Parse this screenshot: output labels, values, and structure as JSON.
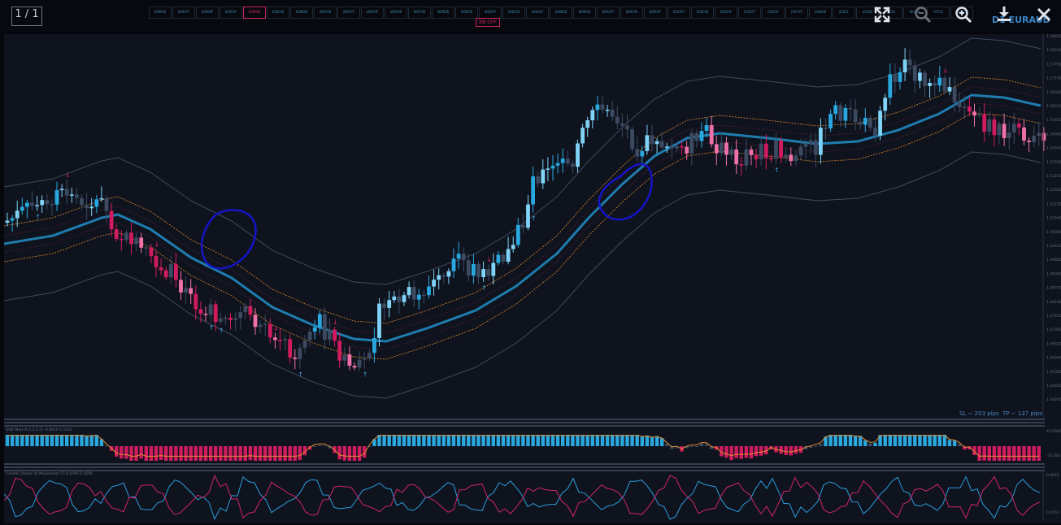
{
  "viewer": {
    "counter": "1 / 1",
    "toolbar": {
      "fullscreen_icon": "fullscreen-icon",
      "zoom_out_icon": "zoom-out-icon",
      "zoom_in_icon": "zoom-in-icon",
      "download_icon": "download-icon",
      "close_icon": "close-icon"
    }
  },
  "terminal": {
    "symbol_tabs": [
      "EURUSD",
      "EURJPY",
      "EURGBP",
      "EURCHF",
      "EURAUD",
      "EURCAD",
      "EURNZD",
      "GBPUSD",
      "GBPJPY",
      "GBPCHF",
      "GBPAUD",
      "GBPCAD",
      "GBPNZD",
      "AUDUSD",
      "AUDJPY",
      "AUDCAD",
      "AUDCHF",
      "AUDNZD",
      "NZDUSD",
      "NZDJPY",
      "NZDCAD",
      "NZDCHF",
      "USDJPY",
      "USDCAD",
      "USDCHF",
      "CADJPY",
      "CADCHF",
      "CHFJPY",
      "XAUUSD",
      "USOIL",
      "US500",
      "DE30",
      "UK100",
      "JP225",
      "GBPUSD"
    ],
    "active_tab_index": 4,
    "bb_toggle": "BB OFF",
    "pair_label": "D1  EURAUD",
    "trade_info": {
      "sl": "SL − 203 pips",
      "tp": "TP − 137 pips"
    },
    "price_ticks": [
      "1.58820",
      "1.58260",
      "1.57700",
      "1.57140",
      "1.56580",
      "1.56020",
      "1.55460",
      "1.54900",
      "1.54340",
      "1.53780",
      "1.53220",
      "1.52660",
      "1.52100",
      "1.51540",
      "1.50980",
      "1.50420",
      "1.49860",
      "1.49300",
      "1.48740",
      "1.48180",
      "1.47620",
      "1.47060",
      "1.46500",
      "1.45940",
      "1.45380",
      "1.44820",
      "1.44260"
    ],
    "panel1_label": "QQE Mod (6,5,3,3.5)  -0.8010  0.5533",
    "panel1_ticks": [
      "45.0000",
      "-35.000"
    ],
    "panel2_label": "Candle Chaser Vs Movement (7)  0.4395  0.4595",
    "panel2_ticks": [
      "0.9645",
      "0.0355"
    ]
  },
  "colors": {
    "bg": "#05070c",
    "panel": "#0f131e",
    "bull_strong": "#29a8e0",
    "bull_light": "#7fd3f7",
    "bear_strong": "#d01c5e",
    "bear_light": "#f071a9",
    "neutral": "#3b4a60",
    "ma": "#1f7cae",
    "envelope": "#e08a2e",
    "outer_band": "#3f4a5e",
    "pen": "#1414c8"
  }
}
